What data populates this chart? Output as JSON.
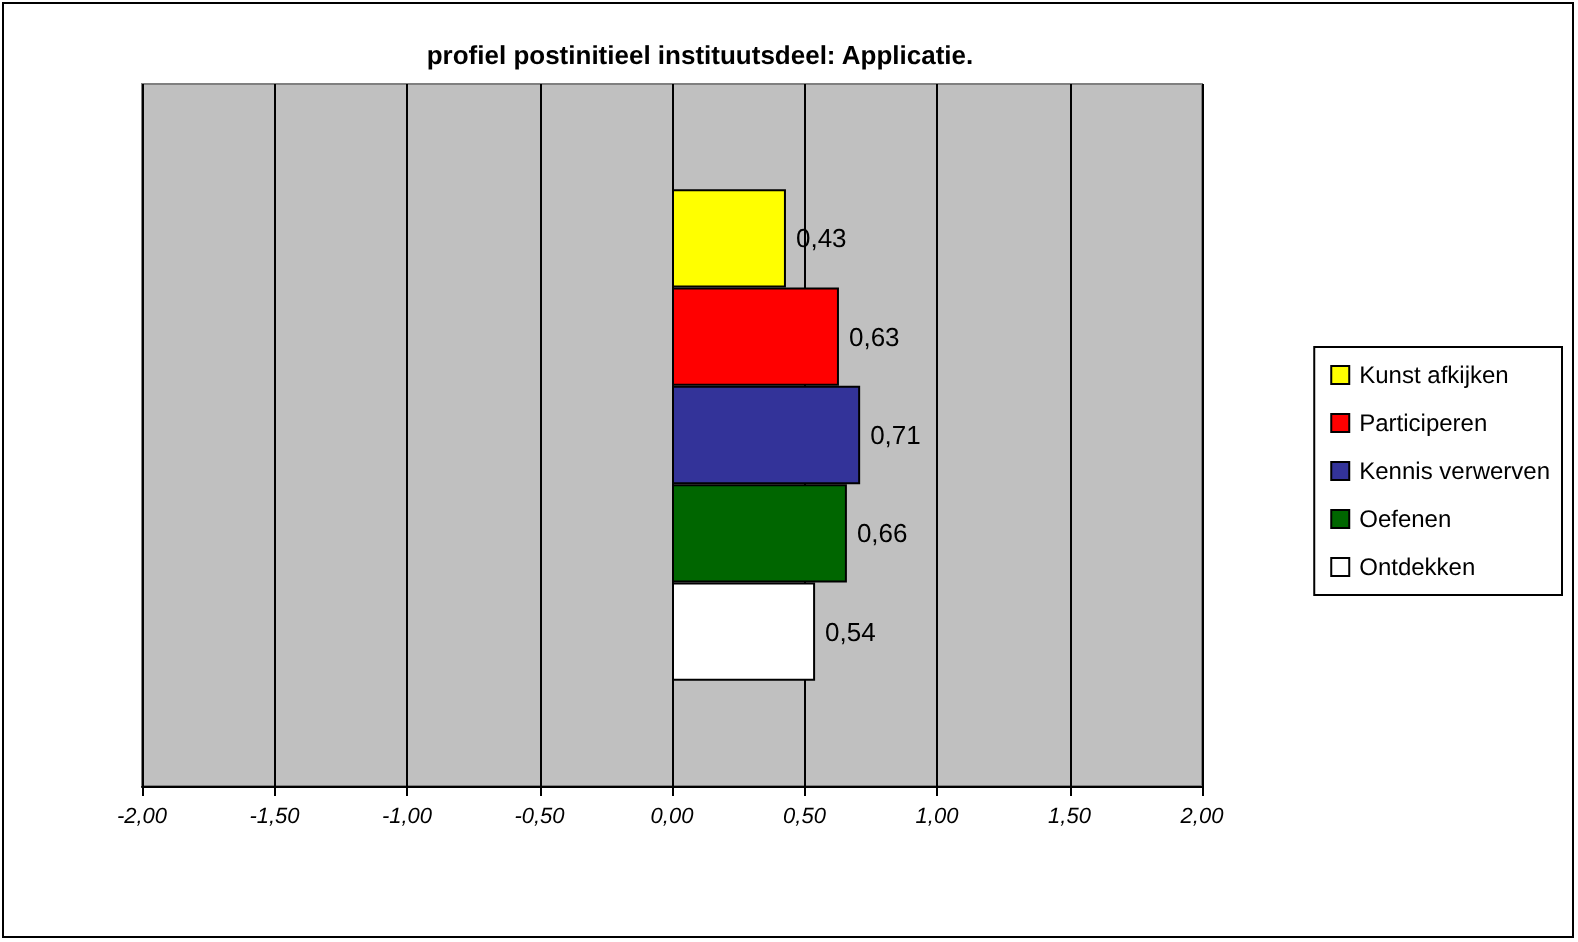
{
  "chart_data": {
    "type": "bar",
    "title": "profiel postinitieel instituutsdeel: Applicatie.",
    "orientation": "horizontal",
    "categories": [
      null
    ],
    "series": [
      {
        "name": "Kunst afkijken",
        "color": "#ffff00",
        "values": [
          0.43
        ],
        "value_labels": [
          "0,43"
        ]
      },
      {
        "name": "Participeren",
        "color": "#ff0000",
        "values": [
          0.63
        ],
        "value_labels": [
          "0,63"
        ]
      },
      {
        "name": "Kennis verwerven",
        "color": "#333399",
        "values": [
          0.71
        ],
        "value_labels": [
          "0,71"
        ]
      },
      {
        "name": "Oefenen",
        "color": "#006600",
        "values": [
          0.66
        ],
        "value_labels": [
          "0,66"
        ]
      },
      {
        "name": "Ontdekken",
        "color": "#ffffff",
        "values": [
          0.54
        ],
        "value_labels": [
          "0,54"
        ]
      }
    ],
    "xlim": [
      -2,
      2
    ],
    "xticks": [
      {
        "value": -2,
        "label": "-2,00"
      },
      {
        "value": -1.5,
        "label": "-1,50"
      },
      {
        "value": -1,
        "label": "-1,00"
      },
      {
        "value": -0.5,
        "label": "-0,50"
      },
      {
        "value": 0,
        "label": "0,00"
      },
      {
        "value": 0.5,
        "label": "0,50"
      },
      {
        "value": 1,
        "label": "1,00"
      },
      {
        "value": 1.5,
        "label": "1,50"
      },
      {
        "value": 2,
        "label": "2,00"
      }
    ],
    "grid": "x",
    "legend": "right"
  }
}
